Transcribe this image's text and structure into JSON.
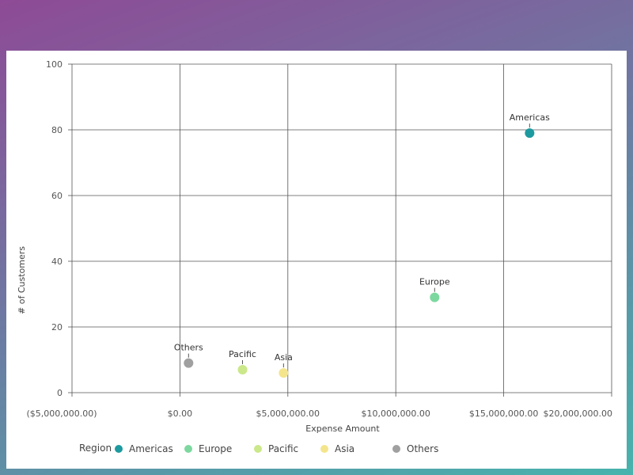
{
  "chart_data": {
    "type": "scatter",
    "title": "",
    "xlabel": "Expense Amount",
    "ylabel": "# of Customers",
    "xlim": [
      -5000000,
      20000000
    ],
    "ylim": [
      0,
      100
    ],
    "x_ticks": [
      -5000000,
      0,
      5000000,
      10000000,
      15000000,
      20000000
    ],
    "x_tick_labels": [
      "($5,000,000.00)",
      "$0.00",
      "$5,000,000.00",
      "$10,000,000.00",
      "$15,000,000.00",
      "$20,000,000.00"
    ],
    "y_ticks": [
      0,
      20,
      40,
      60,
      80,
      100
    ],
    "y_tick_labels": [
      "0",
      "20",
      "40",
      "60",
      "80",
      "100"
    ],
    "grid": true,
    "legend_title": "Region",
    "legend_position": "bottom-left",
    "series": [
      {
        "name": "Americas",
        "color": "#1d9a9f",
        "points": [
          {
            "x": 16200000,
            "y": 79,
            "label": "Americas"
          }
        ]
      },
      {
        "name": "Europe",
        "color": "#7dd89f",
        "points": [
          {
            "x": 11800000,
            "y": 29,
            "label": "Europe"
          }
        ]
      },
      {
        "name": "Pacific",
        "color": "#cbe88a",
        "points": [
          {
            "x": 2900000,
            "y": 7,
            "label": "Pacific"
          }
        ]
      },
      {
        "name": "Asia",
        "color": "#f4e58c",
        "points": [
          {
            "x": 4800000,
            "y": 6,
            "label": "Asia"
          }
        ]
      },
      {
        "name": "Others",
        "color": "#a0a0a0",
        "points": [
          {
            "x": 400000,
            "y": 9,
            "label": "Others"
          }
        ]
      }
    ]
  }
}
